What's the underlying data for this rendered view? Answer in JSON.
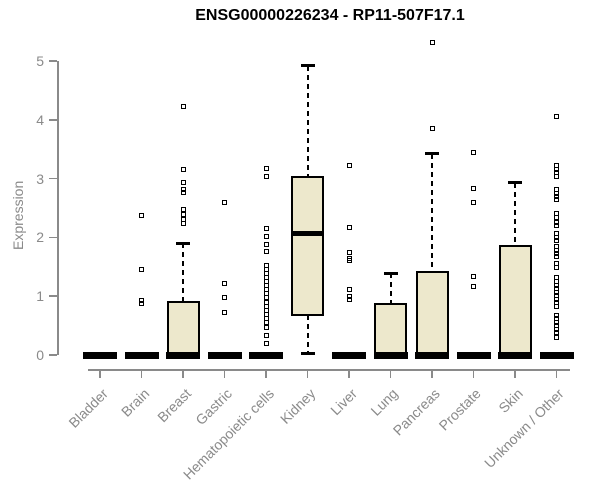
{
  "chart_data": {
    "type": "boxplot",
    "title": "ENSG00000226234 - RP11-507F17.1",
    "ylabel": "Expression",
    "xlabel": "",
    "ylim": [
      0,
      5
    ],
    "yticks": [
      0,
      1,
      2,
      3,
      4,
      5
    ],
    "grid": false,
    "legend": "none",
    "colors": {
      "box_fill": "#EDE8CC",
      "box_stroke": "#000000",
      "axis": "#8A8A8A",
      "title": "#000000",
      "background": "#FFFFFF"
    },
    "categories": [
      "Bladder",
      "Brain",
      "Breast",
      "Gastric",
      "Hematopoietic cells",
      "Kidney",
      "Liver",
      "Lung",
      "Pancreas",
      "Prostate",
      "Skin",
      "Unknown / Other"
    ],
    "boxes": [
      {
        "category": "Bladder",
        "min": 0,
        "q1": 0,
        "median": 0,
        "q3": 0,
        "max": 0,
        "outliers": []
      },
      {
        "category": "Brain",
        "min": 0,
        "q1": 0,
        "median": 0,
        "q3": 0,
        "max": 0,
        "outliers": [
          2.38,
          1.45,
          0.92,
          0.88
        ]
      },
      {
        "category": "Breast",
        "min": 0,
        "q1": 0,
        "median": 0,
        "q3": 0.9,
        "max": 1.9,
        "outliers": [
          4.23,
          3.16,
          2.94,
          2.81,
          2.77,
          2.47,
          2.39,
          2.31,
          2.23
        ]
      },
      {
        "category": "Gastric",
        "min": 0,
        "q1": 0,
        "median": 0,
        "q3": 0,
        "max": 0,
        "outliers": [
          2.6,
          1.22,
          0.98,
          0.73
        ]
      },
      {
        "category": "Hematopoietic cells",
        "min": 0,
        "q1": 0,
        "median": 0,
        "q3": 0,
        "max": 0,
        "outliers": [
          3.18,
          3.03,
          2.15,
          2.02,
          1.88,
          1.76,
          1.53,
          1.46,
          1.39,
          1.32,
          1.25,
          1.18,
          1.11,
          1.04,
          0.97,
          0.9,
          0.83,
          0.76,
          0.69,
          0.62,
          0.55,
          0.47,
          0.34,
          0.2
        ]
      },
      {
        "category": "Kidney",
        "min": 0.03,
        "q1": 0.68,
        "median": 2.07,
        "q3": 3.03,
        "max": 4.92,
        "outliers": []
      },
      {
        "category": "Liver",
        "min": 0,
        "q1": 0,
        "median": 0,
        "q3": 0,
        "max": 0,
        "outliers": [
          3.23,
          2.16,
          1.75,
          1.64,
          1.6,
          1.11,
          0.99,
          0.94
        ]
      },
      {
        "category": "Lung",
        "min": 0,
        "q1": 0,
        "median": 0,
        "q3": 0.86,
        "max": 1.39,
        "outliers": []
      },
      {
        "category": "Pancreas",
        "min": 0,
        "q1": 0,
        "median": 0,
        "q3": 1.42,
        "max": 3.42,
        "outliers": [
          5.32,
          3.86
        ]
      },
      {
        "category": "Prostate",
        "min": 0,
        "q1": 0,
        "median": 0,
        "q3": 0,
        "max": 0,
        "outliers": [
          3.45,
          2.84,
          2.6,
          1.33,
          1.17
        ]
      },
      {
        "category": "Skin",
        "min": 0,
        "q1": 0,
        "median": 0,
        "q3": 1.85,
        "max": 2.93,
        "outliers": []
      },
      {
        "category": "Unknown / Other",
        "min": 0,
        "q1": 0,
        "median": 0,
        "q3": 0,
        "max": 0,
        "outliers": [
          4.05,
          3.23,
          3.16,
          3.1,
          3.03,
          2.82,
          2.75,
          2.69,
          2.64,
          2.41,
          2.33,
          2.26,
          2.21,
          2.06,
          2.0,
          1.94,
          1.84,
          1.78,
          1.72,
          1.67,
          1.55,
          1.48,
          1.31,
          1.25,
          1.19,
          1.13,
          1.07,
          1.01,
          0.95,
          0.89,
          0.82,
          0.68,
          0.62,
          0.56,
          0.5,
          0.44,
          0.38,
          0.29
        ]
      }
    ]
  }
}
